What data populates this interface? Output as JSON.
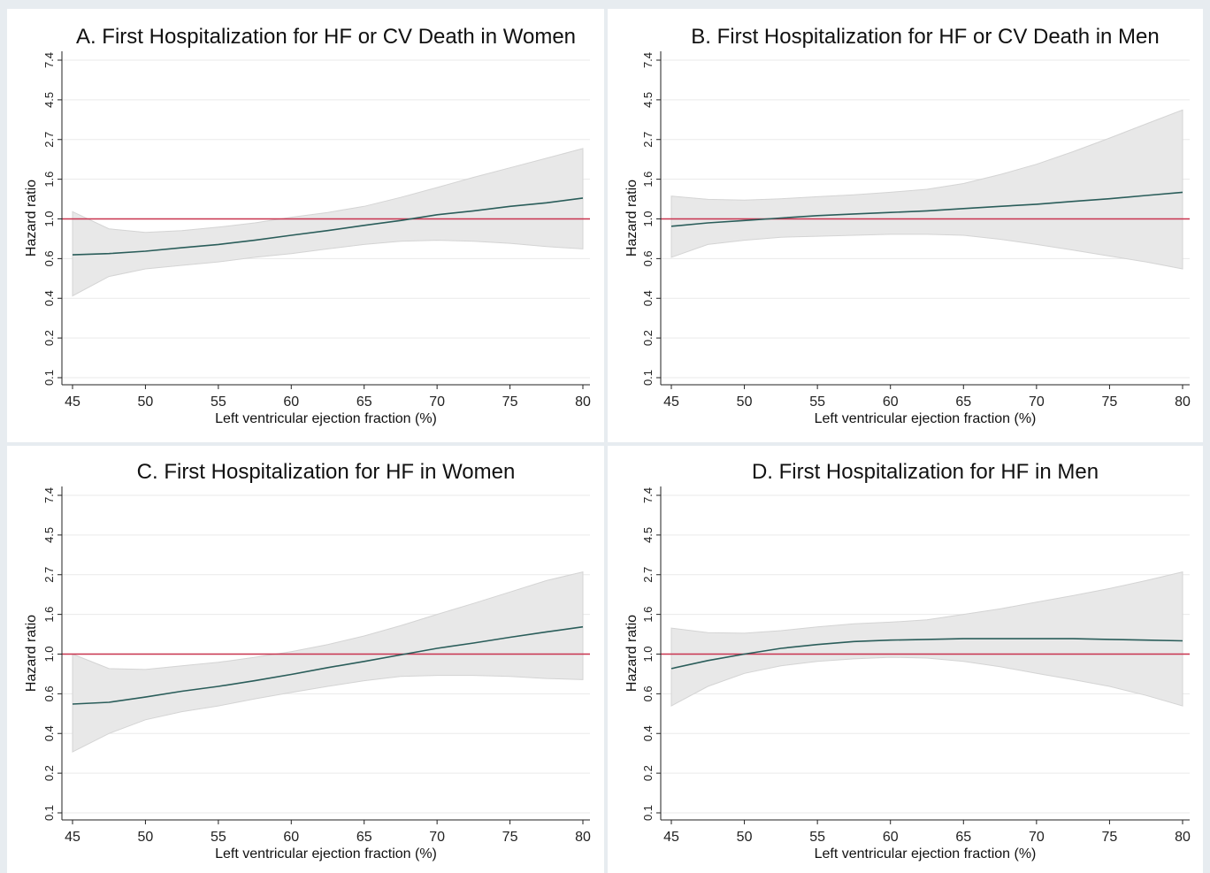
{
  "colors": {
    "background": "#e7ecf0",
    "panel": "#ffffff",
    "grid": "#eaeaea",
    "axis": "#222222",
    "ci_fill": "#e8e8e8",
    "ci_edge": "#d4d4d4",
    "estimate_line": "#2a5d5a",
    "reference_line": "#c8334e"
  },
  "chart_data": [
    {
      "type": "line",
      "panel": "A",
      "title": "A. First Hospitalization for HF or CV Death in Women",
      "xlabel": "Left ventricular ejection fraction (%)",
      "ylabel": "Hazard ratio",
      "xlim": [
        45,
        80
      ],
      "ylim": [
        0.1,
        7.4
      ],
      "yscale": "log-like",
      "xticks": [
        "45",
        "50",
        "55",
        "60",
        "65",
        "70",
        "75",
        "80"
      ],
      "yticks": [
        "0.1",
        "0.2",
        "0.4",
        "0.6",
        "1.0",
        "1.6",
        "2.7",
        "4.5",
        "7.4"
      ],
      "reference_line": 1.0,
      "grid": true,
      "x": [
        45,
        47.5,
        50,
        52.5,
        55,
        57.5,
        60,
        62.5,
        65,
        67.5,
        70,
        72.5,
        75,
        77.5,
        80
      ],
      "series": [
        {
          "name": "",
          "role": "estimate",
          "values": [
            0.63,
            0.64,
            0.66,
            0.69,
            0.72,
            0.76,
            0.81,
            0.86,
            0.92,
            0.98,
            1.05,
            1.1,
            1.16,
            1.21,
            1.28
          ]
        },
        {
          "name": "",
          "role": "ci_upper",
          "values": [
            1.09,
            0.88,
            0.84,
            0.86,
            0.9,
            0.95,
            1.02,
            1.08,
            1.16,
            1.29,
            1.45,
            1.64,
            1.86,
            2.11,
            2.4
          ]
        },
        {
          "name": "",
          "role": "ci_lower",
          "values": [
            0.41,
            0.5,
            0.54,
            0.56,
            0.58,
            0.61,
            0.64,
            0.68,
            0.72,
            0.75,
            0.76,
            0.75,
            0.73,
            0.7,
            0.68
          ]
        }
      ]
    },
    {
      "type": "line",
      "panel": "B",
      "title": "B. First Hospitalization for HF or CV Death in Men",
      "xlabel": "Left ventricular ejection fraction (%)",
      "ylabel": "Hazard ratio",
      "xlim": [
        45,
        80
      ],
      "ylim": [
        0.1,
        7.4
      ],
      "yscale": "log-like",
      "xticks": [
        "45",
        "50",
        "55",
        "60",
        "65",
        "70",
        "75",
        "80"
      ],
      "yticks": [
        "0.1",
        "0.2",
        "0.4",
        "0.6",
        "1.0",
        "1.6",
        "2.7",
        "4.5",
        "7.4"
      ],
      "reference_line": 1.0,
      "grid": true,
      "x": [
        45,
        47.5,
        50,
        52.5,
        55,
        57.5,
        60,
        62.5,
        65,
        67.5,
        70,
        72.5,
        75,
        77.5,
        80
      ],
      "series": [
        {
          "name": "",
          "role": "estimate",
          "values": [
            0.91,
            0.95,
            0.98,
            1.01,
            1.04,
            1.06,
            1.08,
            1.1,
            1.13,
            1.16,
            1.19,
            1.23,
            1.27,
            1.32,
            1.37
          ]
        },
        {
          "name": "",
          "role": "ci_upper",
          "values": [
            1.31,
            1.26,
            1.25,
            1.27,
            1.3,
            1.33,
            1.37,
            1.42,
            1.52,
            1.7,
            1.95,
            2.3,
            2.75,
            3.3,
            3.95
          ]
        },
        {
          "name": "",
          "role": "ci_lower",
          "values": [
            0.61,
            0.72,
            0.76,
            0.79,
            0.8,
            0.81,
            0.82,
            0.82,
            0.81,
            0.77,
            0.72,
            0.67,
            0.62,
            0.58,
            0.54
          ]
        }
      ]
    },
    {
      "type": "line",
      "panel": "C",
      "title": "C. First Hospitalization for HF in Women",
      "xlabel": "Left ventricular ejection fraction (%)",
      "ylabel": "Hazard ratio",
      "xlim": [
        45,
        80
      ],
      "ylim": [
        0.1,
        7.4
      ],
      "yscale": "log-like",
      "xticks": [
        "45",
        "50",
        "55",
        "60",
        "65",
        "70",
        "75",
        "80"
      ],
      "yticks": [
        "0.1",
        "0.2",
        "0.4",
        "0.6",
        "1.0",
        "1.6",
        "2.7",
        "4.5",
        "7.4"
      ],
      "reference_line": 1.0,
      "grid": true,
      "x": [
        45,
        47.5,
        50,
        52.5,
        55,
        57.5,
        60,
        62.5,
        65,
        67.5,
        70,
        72.5,
        75,
        77.5,
        80
      ],
      "series": [
        {
          "name": "",
          "role": "estimate",
          "values": [
            0.54,
            0.55,
            0.58,
            0.62,
            0.66,
            0.71,
            0.77,
            0.84,
            0.91,
            0.99,
            1.07,
            1.14,
            1.22,
            1.3,
            1.38
          ]
        },
        {
          "name": "",
          "role": "ci_upper",
          "values": [
            1.0,
            0.83,
            0.82,
            0.86,
            0.9,
            0.96,
            1.03,
            1.12,
            1.24,
            1.4,
            1.6,
            1.85,
            2.15,
            2.5,
            2.8
          ]
        },
        {
          "name": "",
          "role": "ci_lower",
          "values": [
            0.29,
            0.4,
            0.46,
            0.5,
            0.53,
            0.57,
            0.61,
            0.66,
            0.71,
            0.75,
            0.76,
            0.76,
            0.75,
            0.73,
            0.72
          ]
        }
      ]
    },
    {
      "type": "line",
      "panel": "D",
      "title": "D. First Hospitalization for HF in Men",
      "xlabel": "Left ventricular ejection fraction (%)",
      "ylabel": "Hazard ratio",
      "xlim": [
        45,
        80
      ],
      "ylim": [
        0.1,
        7.4
      ],
      "yscale": "log-like",
      "xticks": [
        "45",
        "50",
        "55",
        "60",
        "65",
        "70",
        "75",
        "80"
      ],
      "yticks": [
        "0.1",
        "0.2",
        "0.4",
        "0.6",
        "1.0",
        "1.6",
        "2.7",
        "4.5",
        "7.4"
      ],
      "reference_line": 1.0,
      "grid": true,
      "x": [
        45,
        47.5,
        50,
        52.5,
        55,
        57.5,
        60,
        62.5,
        65,
        67.5,
        70,
        72.5,
        75,
        77.5,
        80
      ],
      "series": [
        {
          "name": "",
          "role": "estimate",
          "values": [
            0.83,
            0.92,
            1.0,
            1.07,
            1.12,
            1.16,
            1.18,
            1.19,
            1.2,
            1.2,
            1.2,
            1.2,
            1.19,
            1.18,
            1.17
          ]
        },
        {
          "name": "",
          "role": "ci_upper",
          "values": [
            1.36,
            1.29,
            1.28,
            1.32,
            1.38,
            1.43,
            1.46,
            1.5,
            1.6,
            1.72,
            1.88,
            2.05,
            2.25,
            2.5,
            2.8
          ]
        },
        {
          "name": "",
          "role": "ci_lower",
          "values": [
            0.53,
            0.66,
            0.78,
            0.86,
            0.91,
            0.94,
            0.96,
            0.95,
            0.91,
            0.85,
            0.78,
            0.72,
            0.66,
            0.59,
            0.53
          ]
        }
      ]
    }
  ]
}
